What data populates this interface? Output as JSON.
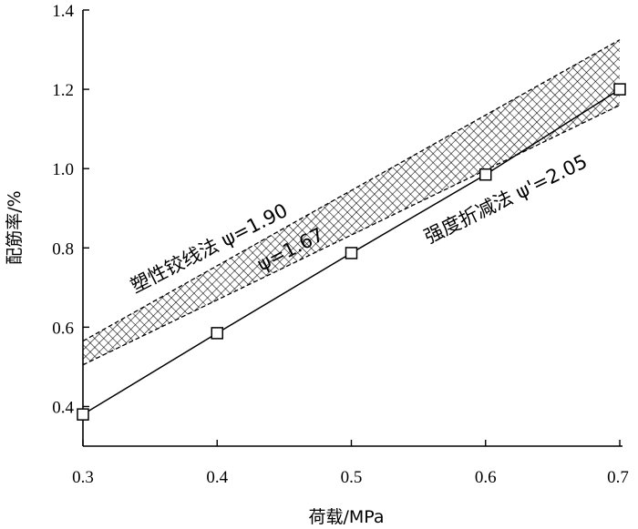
{
  "chart_data": {
    "type": "line",
    "xlabel": "荷载/MPa",
    "ylabel": "配筋率/%",
    "xlim": [
      0.3,
      0.7
    ],
    "ylim": [
      0.3,
      1.4
    ],
    "xticks": [
      "0.3",
      "0.4",
      "0.5",
      "0.6",
      "0.7"
    ],
    "yticks": [
      "0.4",
      "0.6",
      "0.8",
      "1.0",
      "1.2",
      "1.4"
    ],
    "series": [
      {
        "name": "强度折减法 ψ'=2.05",
        "marker": "square",
        "x": [
          0.3,
          0.4,
          0.5,
          0.6,
          0.7
        ],
        "y": [
          0.38,
          0.585,
          0.787,
          0.985,
          1.2
        ]
      }
    ],
    "band": {
      "name": "塑性铰线法",
      "pattern": "crosshatch",
      "upper": {
        "label": "ψ=1.90",
        "x": [
          0.3,
          0.7
        ],
        "y": [
          0.565,
          1.325
        ]
      },
      "lower": {
        "label": "ψ=1.67",
        "x": [
          0.3,
          0.7
        ],
        "y": [
          0.505,
          1.16
        ]
      }
    },
    "annotations": {
      "upper": "塑性铰线法 ψ=1.90",
      "lower": "ψ=1.67",
      "line": "强度折减法 ψ'=2.05"
    }
  }
}
